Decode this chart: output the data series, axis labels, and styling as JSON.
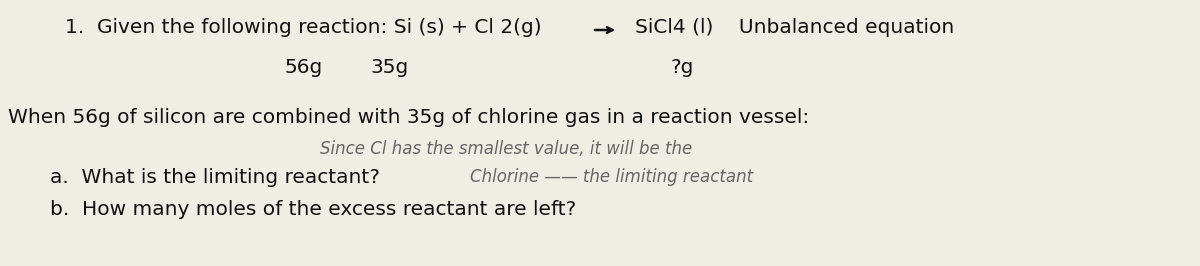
{
  "bg_color": "#f0ede4",
  "fig_width": 12.0,
  "fig_height": 2.66,
  "printed_fontsize": 14.5,
  "handwritten_fontsize": 12.0,
  "text_color": "#111111",
  "handwritten_color": "#666666",
  "texts": {
    "line1a": "1.  Given the following reaction: Si (s) + Cl 2(g)",
    "line1b": "SiCl4 (l)    Unbalanced equation",
    "line2a": "56g",
    "line2b": "35g",
    "line2c": "?g",
    "line3": "When 56g of silicon are combined with 35g of chlorine gas in a reaction vessel:",
    "handwritten1": "Since Cl has the smallest value, it will be the",
    "line4a": "a.  What is the limiting reactant?",
    "handwritten2": "Chlorine —— the limiting reactant",
    "line5": "b.  How many moles of the excess reactant are left?"
  }
}
